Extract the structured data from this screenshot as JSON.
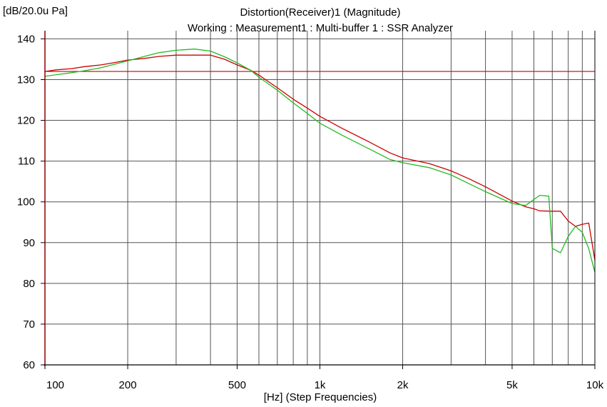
{
  "window": {
    "y_unit_label": "[dB/20.0u Pa]",
    "title": "Distortion(Receiver)1 (Magnitude)",
    "subtitle": "Working : Measurement1 : Multi-buffer 1 : SSR Analyzer"
  },
  "chart_data": {
    "type": "line",
    "title": "Distortion(Receiver)1 (Magnitude)",
    "subtitle": "Working : Measurement1 : Multi-buffer 1 : SSR Analyzer",
    "xlabel": "[Hz] (Step Frequencies)",
    "ylabel": "[dB/20.0u Pa]",
    "xscale": "log",
    "xlim": [
      100,
      10000
    ],
    "ylim": [
      60,
      142
    ],
    "grid": true,
    "x_ticks": [
      100,
      200,
      500,
      1000,
      2000,
      5000,
      10000
    ],
    "x_tick_labels": [
      "100",
      "200",
      "500",
      "1k",
      "2k",
      "5k",
      "10k"
    ],
    "y_ticks": [
      60,
      70,
      80,
      90,
      100,
      110,
      120,
      130,
      140
    ],
    "y_tick_labels": [
      "60",
      "70",
      "80",
      "90",
      "100",
      "110",
      "120",
      "130",
      "140"
    ],
    "reference_lines": [
      {
        "y": 132.0,
        "color": "#cc0000"
      }
    ],
    "series": [
      {
        "color": "#cc0000",
        "x": [
          100,
          110,
          125,
          140,
          160,
          180,
          200,
          230,
          260,
          300,
          350,
          400,
          450,
          500,
          560,
          600,
          700,
          800,
          900,
          1000,
          1200,
          1500,
          1800,
          2000,
          2500,
          3000,
          3500,
          4000,
          5000,
          5600,
          6000,
          6300,
          7000,
          7500,
          8000,
          8500,
          9000,
          9500,
          10000
        ],
        "y": [
          132.0,
          132.4,
          132.7,
          133.2,
          133.6,
          134.2,
          134.8,
          135.2,
          135.7,
          136.0,
          136.0,
          136.0,
          135.0,
          133.6,
          132.3,
          131.1,
          128.0,
          125.2,
          123.0,
          121.0,
          118.1,
          114.8,
          112.0,
          110.8,
          109.4,
          107.6,
          105.6,
          103.7,
          100.2,
          98.8,
          98.3,
          97.8,
          97.7,
          97.7,
          95.3,
          94.0,
          94.5,
          94.8,
          85.7
        ]
      },
      {
        "color": "#22bb22",
        "x": [
          100,
          110,
          125,
          140,
          160,
          180,
          200,
          230,
          260,
          300,
          350,
          400,
          450,
          500,
          560,
          600,
          700,
          800,
          900,
          1000,
          1200,
          1500,
          1800,
          2000,
          2500,
          3000,
          3500,
          4000,
          5000,
          5600,
          6000,
          6300,
          6800,
          7000,
          7500,
          8000,
          8500,
          9000,
          9500,
          10000
        ],
        "y": [
          130.8,
          131.2,
          131.7,
          132.2,
          132.9,
          133.8,
          134.6,
          135.7,
          136.6,
          137.2,
          137.5,
          137.0,
          135.6,
          134.1,
          132.3,
          130.6,
          127.4,
          124.3,
          121.7,
          119.3,
          116.4,
          113.1,
          110.4,
          109.6,
          108.4,
          106.6,
          104.4,
          102.5,
          99.6,
          99.1,
          100.6,
          101.6,
          101.4,
          88.6,
          87.5,
          91.5,
          94.0,
          92.5,
          88.5,
          82.7
        ]
      }
    ]
  }
}
